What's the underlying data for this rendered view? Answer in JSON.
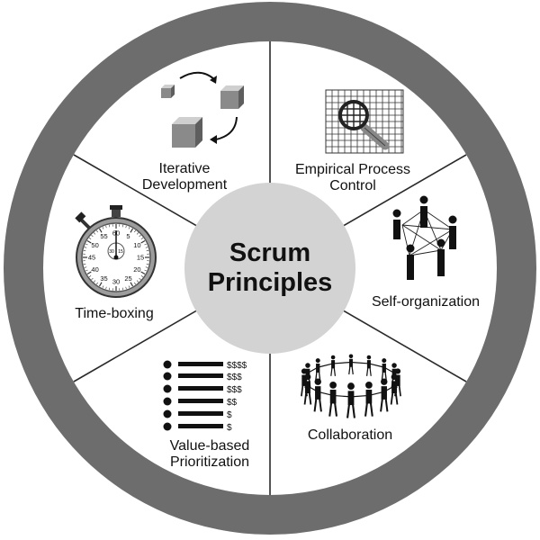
{
  "center": {
    "line1": "Scrum",
    "line2": "Principles"
  },
  "segments": {
    "iterative": {
      "line1": "Iterative",
      "line2": "Development",
      "icon": "iterative-cubes-icon"
    },
    "empirical": {
      "line1": "Empirical Process",
      "line2": "Control",
      "icon": "magnifier-grid-icon"
    },
    "selforg": {
      "line1": "Self-organization",
      "icon": "network-people-icon"
    },
    "collab": {
      "line1": "Collaboration",
      "icon": "circle-of-people-icon"
    },
    "value": {
      "line1": "Value-based",
      "line2": "Prioritization",
      "icon": "priority-list-icon",
      "dollars": [
        "$$$$",
        "$$$",
        "$$$",
        "$$",
        "$",
        "$"
      ]
    },
    "timebox": {
      "line1": "Time-boxing",
      "icon": "stopwatch-icon",
      "dial": [
        "60",
        "5",
        "10",
        "15",
        "20",
        "25",
        "30",
        "35",
        "40",
        "45",
        "50",
        "55"
      ],
      "subdial": [
        "30",
        "15"
      ]
    }
  },
  "colors": {
    "ring": "#6d6d6d",
    "hub": "#d3d3d3",
    "divider": "#2a2a2a",
    "ink": "#111111"
  }
}
